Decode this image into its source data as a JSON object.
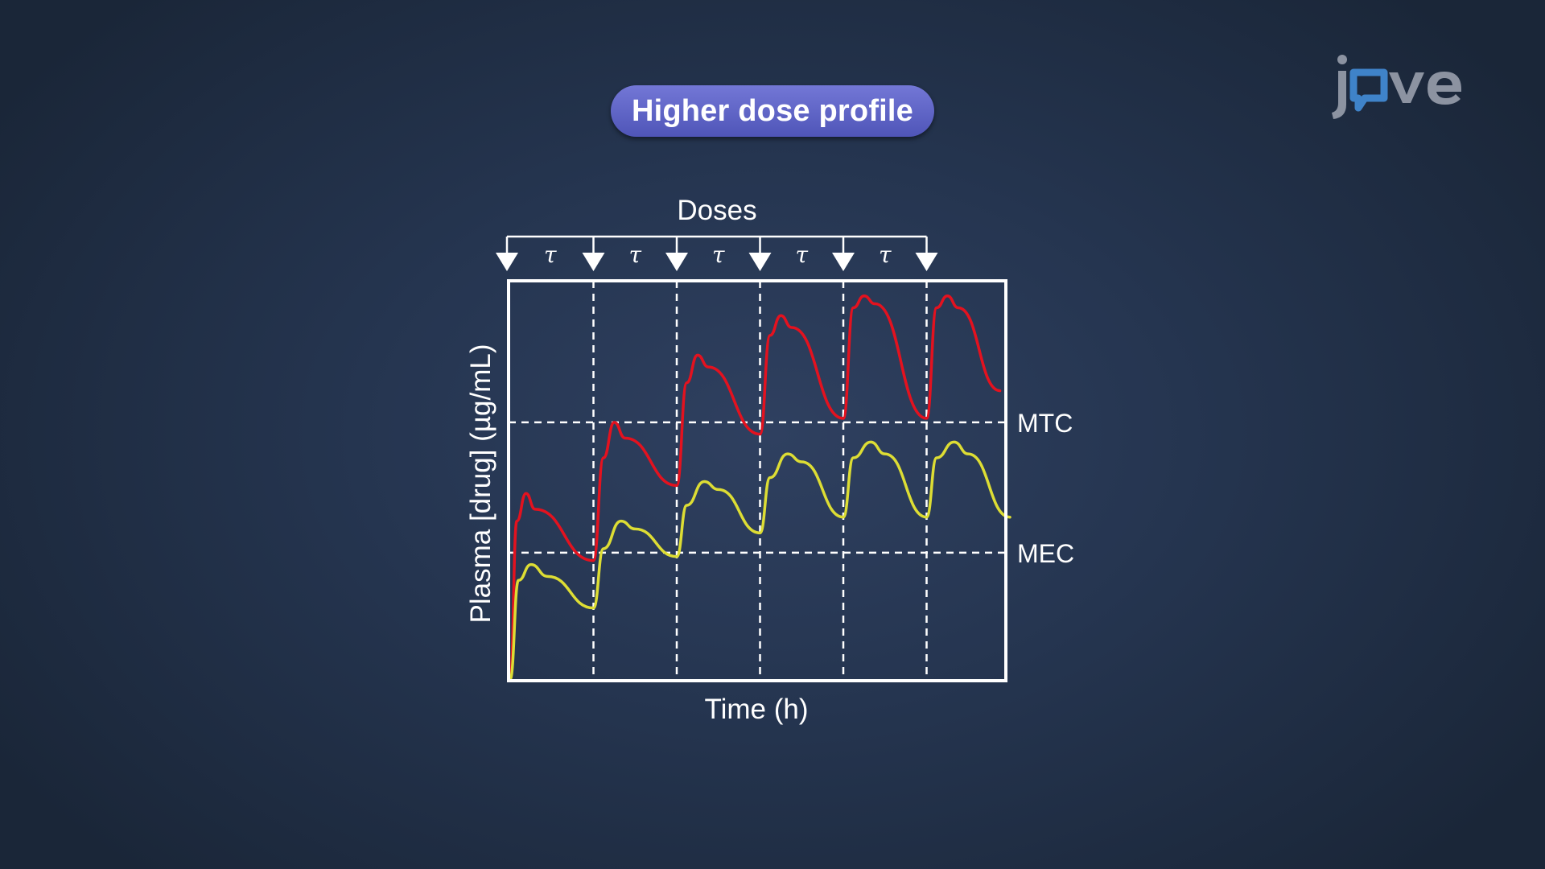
{
  "header": {
    "title": "Higher dose profile"
  },
  "logo": {
    "text": "jove",
    "name": "jove-logo"
  },
  "colors": {
    "background": "#253550",
    "pill": "#5d62c4",
    "higher_dose_line": "#e3121f",
    "standard_dose_line": "#dddd34",
    "axes": "#ffffff",
    "logo_gray": "#8c93a1",
    "logo_blue": "#3f83c9"
  },
  "chart_data": {
    "type": "line",
    "title": "",
    "xlabel": "Time (h)",
    "ylabel": "Plasma [drug] (µg/mL)",
    "doses_label": "Doses",
    "interval_symbol": "τ",
    "dose_times": [
      0,
      1,
      2,
      3,
      4,
      5
    ],
    "interval_label_times": [
      0.5,
      1.5,
      2.5,
      3.5,
      4.5
    ],
    "xlim": [
      0,
      6
    ],
    "ylim": [
      0,
      100
    ],
    "grid": false,
    "reference_lines": [
      {
        "label": "MTC",
        "value": 65
      },
      {
        "label": "MEC",
        "value": 32
      }
    ],
    "series": [
      {
        "color": "#e3121f",
        "points": [
          [
            0,
            0
          ],
          [
            0.08,
            40
          ],
          [
            0.19,
            47
          ],
          [
            0.3,
            43
          ],
          [
            1,
            30
          ],
          [
            1.12,
            56
          ],
          [
            1.25,
            65
          ],
          [
            1.38,
            61
          ],
          [
            2,
            49
          ],
          [
            2.12,
            75
          ],
          [
            2.25,
            82
          ],
          [
            2.38,
            79
          ],
          [
            3,
            62
          ],
          [
            3.12,
            87
          ],
          [
            3.25,
            92
          ],
          [
            3.38,
            89
          ],
          [
            4,
            66
          ],
          [
            4.12,
            94
          ],
          [
            4.25,
            97
          ],
          [
            4.38,
            95
          ],
          [
            5,
            66
          ],
          [
            5.12,
            94
          ],
          [
            5.25,
            97
          ],
          [
            5.38,
            94
          ],
          [
            5.88,
            73
          ]
        ]
      },
      {
        "color": "#dddd34",
        "points": [
          [
            0,
            0
          ],
          [
            0.1,
            25
          ],
          [
            0.25,
            29
          ],
          [
            0.45,
            26
          ],
          [
            1,
            18
          ],
          [
            1.12,
            33
          ],
          [
            1.33,
            40
          ],
          [
            1.5,
            38
          ],
          [
            2,
            31
          ],
          [
            2.12,
            44
          ],
          [
            2.33,
            50
          ],
          [
            2.5,
            48
          ],
          [
            3,
            37
          ],
          [
            3.12,
            51
          ],
          [
            3.33,
            57
          ],
          [
            3.5,
            55
          ],
          [
            4,
            41
          ],
          [
            4.12,
            56
          ],
          [
            4.33,
            60
          ],
          [
            4.5,
            57
          ],
          [
            5,
            41
          ],
          [
            5.12,
            56
          ],
          [
            5.33,
            60
          ],
          [
            5.5,
            57
          ],
          [
            6,
            41
          ]
        ]
      }
    ]
  }
}
